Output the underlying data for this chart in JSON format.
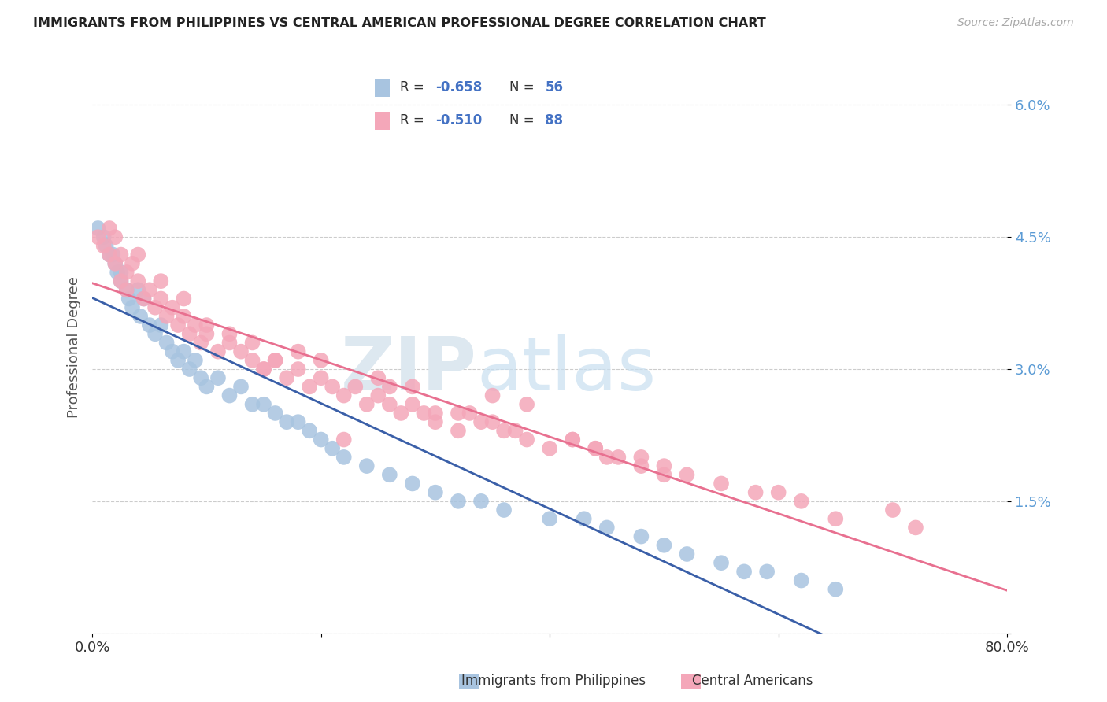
{
  "title": "IMMIGRANTS FROM PHILIPPINES VS CENTRAL AMERICAN PROFESSIONAL DEGREE CORRELATION CHART",
  "source": "Source: ZipAtlas.com",
  "ylabel": "Professional Degree",
  "color_blue": "#a8c4e0",
  "color_pink": "#f4a7b9",
  "line_blue": "#3a5fa8",
  "line_pink": "#e87090",
  "watermark_zip": "ZIP",
  "watermark_atlas": "atlas",
  "philippines_x": [
    0.5,
    1.0,
    1.2,
    1.5,
    1.8,
    2.0,
    2.2,
    2.5,
    2.5,
    3.0,
    3.2,
    3.5,
    4.0,
    4.2,
    4.5,
    5.0,
    5.5,
    6.0,
    6.5,
    7.0,
    7.5,
    8.0,
    8.5,
    9.0,
    9.5,
    10.0,
    11.0,
    12.0,
    13.0,
    14.0,
    15.0,
    16.0,
    17.0,
    18.0,
    19.0,
    20.0,
    21.0,
    22.0,
    24.0,
    26.0,
    28.0,
    30.0,
    32.0,
    34.0,
    36.0,
    40.0,
    43.0,
    45.0,
    48.0,
    50.0,
    52.0,
    55.0,
    57.0,
    59.0,
    62.0,
    65.0
  ],
  "philippines_y": [
    4.6,
    4.5,
    4.4,
    4.3,
    4.3,
    4.2,
    4.1,
    4.0,
    4.1,
    3.9,
    3.8,
    3.7,
    3.9,
    3.6,
    3.8,
    3.5,
    3.4,
    3.5,
    3.3,
    3.2,
    3.1,
    3.2,
    3.0,
    3.1,
    2.9,
    2.8,
    2.9,
    2.7,
    2.8,
    2.6,
    2.6,
    2.5,
    2.4,
    2.4,
    2.3,
    2.2,
    2.1,
    2.0,
    1.9,
    1.8,
    1.7,
    1.6,
    1.5,
    1.5,
    1.4,
    1.3,
    1.3,
    1.2,
    1.1,
    1.0,
    0.9,
    0.8,
    0.7,
    0.7,
    0.6,
    0.5
  ],
  "central_x": [
    0.5,
    1.0,
    1.5,
    1.5,
    2.0,
    2.0,
    2.5,
    2.5,
    3.0,
    3.0,
    3.5,
    4.0,
    4.5,
    5.0,
    5.5,
    6.0,
    6.5,
    7.0,
    7.5,
    8.0,
    8.5,
    9.0,
    9.5,
    10.0,
    11.0,
    12.0,
    13.0,
    14.0,
    15.0,
    16.0,
    17.0,
    18.0,
    19.0,
    20.0,
    21.0,
    22.0,
    23.0,
    24.0,
    25.0,
    26.0,
    27.0,
    28.0,
    29.0,
    30.0,
    32.0,
    34.0,
    36.0,
    38.0,
    40.0,
    42.0,
    44.0,
    46.0,
    48.0,
    50.0,
    33.0,
    35.0,
    37.0,
    10.0,
    22.0,
    45.0,
    28.0,
    15.0,
    52.0,
    18.0,
    8.0,
    62.0,
    38.0,
    55.0,
    20.0,
    30.0,
    12.0,
    25.0,
    42.0,
    60.0,
    70.0,
    6.0,
    14.0,
    50.0,
    35.0,
    65.0,
    4.0,
    16.0,
    44.0,
    58.0,
    26.0,
    72.0,
    32.0,
    48.0
  ],
  "central_y": [
    4.5,
    4.4,
    4.6,
    4.3,
    4.5,
    4.2,
    4.3,
    4.0,
    4.1,
    3.9,
    4.2,
    4.0,
    3.8,
    3.9,
    3.7,
    3.8,
    3.6,
    3.7,
    3.5,
    3.6,
    3.4,
    3.5,
    3.3,
    3.4,
    3.2,
    3.3,
    3.2,
    3.1,
    3.0,
    3.1,
    2.9,
    3.0,
    2.8,
    2.9,
    2.8,
    2.7,
    2.8,
    2.6,
    2.7,
    2.6,
    2.5,
    2.6,
    2.5,
    2.4,
    2.3,
    2.4,
    2.3,
    2.2,
    2.1,
    2.2,
    2.1,
    2.0,
    1.9,
    1.8,
    2.5,
    2.4,
    2.3,
    3.5,
    2.2,
    2.0,
    2.8,
    3.0,
    1.8,
    3.2,
    3.8,
    1.5,
    2.6,
    1.7,
    3.1,
    2.5,
    3.4,
    2.9,
    2.2,
    1.6,
    1.4,
    4.0,
    3.3,
    1.9,
    2.7,
    1.3,
    4.3,
    3.1,
    2.1,
    1.6,
    2.8,
    1.2,
    2.5,
    2.0
  ],
  "xlim": [
    0,
    80.0
  ],
  "ylim": [
    0,
    6.5
  ],
  "y_ticks": [
    0.0,
    1.5,
    3.0,
    4.5,
    6.0
  ],
  "y_tick_labels": [
    "",
    "1.5%",
    "3.0%",
    "4.5%",
    "6.0%"
  ],
  "x_ticks": [
    0,
    20,
    40,
    60,
    80
  ],
  "x_tick_labels": [
    "0.0%",
    "",
    "",
    "",
    "80.0%"
  ],
  "figsize": [
    14.06,
    8.92
  ],
  "dpi": 100
}
